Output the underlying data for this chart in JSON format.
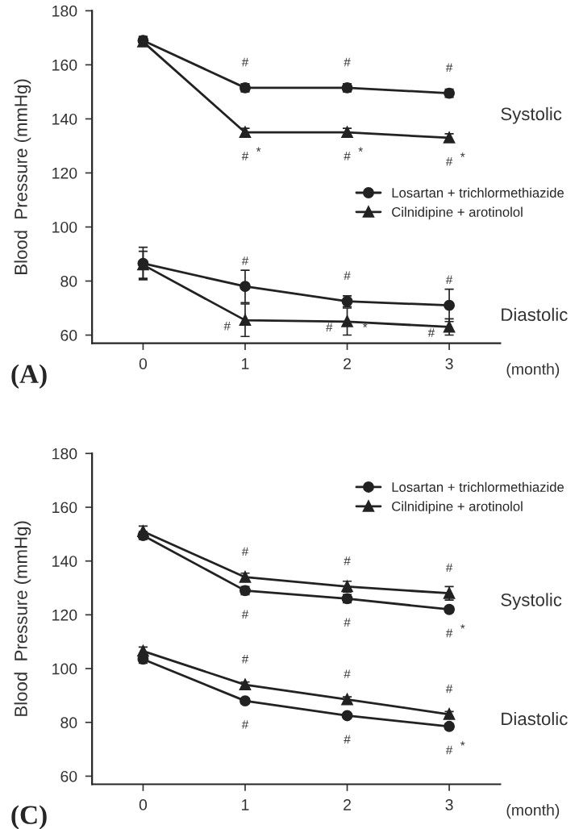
{
  "chart_data": [
    {
      "type": "line",
      "ylabel": "Blood  Pressure (mmHg)",
      "xlabel": "(month)",
      "x": [
        0,
        1,
        2,
        3
      ],
      "xlim": [
        -0.5,
        3.5
      ],
      "ylim": [
        57,
        180
      ],
      "xticks": [
        0,
        1,
        2,
        3
      ],
      "yticks": [
        60,
        80,
        100,
        120,
        140,
        160,
        180
      ],
      "legend": "right",
      "grid": false,
      "series": [
        {
          "name": "Losartan + trichlormethiazide",
          "color": "#222222",
          "marker": "circle",
          "values": [
            169,
            151.5,
            151.5,
            149.5
          ],
          "errors": [
            1.5,
            1.5,
            1.5,
            1.5
          ]
        },
        {
          "name": "Cilnidipine + arotinolol",
          "color": "#222222",
          "marker": "triangle",
          "values": [
            168.5,
            135,
            135,
            133
          ],
          "errors": [
            1.5,
            1.5,
            1.5,
            1.5
          ]
        },
        {
          "color": "#222222",
          "marker": "circle",
          "values": [
            86.5,
            78,
            72.5,
            71
          ],
          "errors": [
            6,
            6,
            2,
            6
          ]
        },
        {
          "color": "#222222",
          "marker": "triangle",
          "values": [
            86,
            65.5,
            65,
            63
          ],
          "errors": [
            5,
            6,
            5,
            3
          ]
        }
      ],
      "annotations": [
        "(A)",
        "Systolic",
        "Diastolic",
        {
          "text": "#",
          "x": 1,
          "y": 151.5
        },
        {
          "text": "#",
          "x": 2,
          "y": 151.5
        },
        {
          "text": "#",
          "x": 3,
          "y": 149.5
        },
        {
          "text": "#",
          "x": 1,
          "y": 135
        },
        {
          "text": "#",
          "x": 2,
          "y": 135
        },
        {
          "text": "#",
          "x": 3,
          "y": 133
        },
        {
          "text": "*",
          "x": 1,
          "y": 135
        },
        {
          "text": "*",
          "x": 2,
          "y": 135
        },
        {
          "text": "*",
          "x": 3,
          "y": 133
        },
        {
          "text": "#",
          "x": 1,
          "y": 78
        },
        {
          "text": "#",
          "x": 2,
          "y": 72.5
        },
        {
          "text": "#",
          "x": 3,
          "y": 71
        },
        {
          "text": "#",
          "x": 1,
          "y": 65.5
        },
        {
          "text": "#",
          "x": 2,
          "y": 65
        },
        {
          "text": "#",
          "x": 3,
          "y": 63
        },
        {
          "text": "*",
          "x": 2,
          "y": 65
        }
      ]
    },
    {
      "type": "line",
      "ylabel": "Blood  Pressure (mmHg)",
      "xlabel": "(month)",
      "x": [
        0,
        1,
        2,
        3
      ],
      "xlim": [
        -0.5,
        3.5
      ],
      "ylim": [
        57,
        180
      ],
      "xticks": [
        0,
        1,
        2,
        3
      ],
      "yticks": [
        60,
        80,
        100,
        120,
        140,
        160,
        180
      ],
      "legend": "top right",
      "grid": false,
      "series": [
        {
          "name": "Losartan + trichlormethiazide",
          "color": "#222222",
          "marker": "circle",
          "values": [
            149.5,
            129,
            126,
            122
          ],
          "errors": [
            1.5,
            1.5,
            1.5,
            1
          ]
        },
        {
          "name": "Cilnidipine + arotinolol",
          "color": "#222222",
          "marker": "triangle",
          "values": [
            151,
            134,
            130.5,
            128
          ],
          "errors": [
            2,
            1.5,
            2,
            2.5
          ]
        },
        {
          "color": "#222222",
          "marker": "circle",
          "values": [
            103.5,
            88,
            82.5,
            78.5
          ],
          "errors": [
            1.5,
            1,
            1,
            1
          ]
        },
        {
          "color": "#222222",
          "marker": "triangle",
          "values": [
            106.5,
            94,
            88.5,
            83
          ],
          "errors": [
            1.5,
            1,
            1,
            1
          ]
        }
      ],
      "annotations": [
        "(C)",
        "Systolic",
        "Diastolic",
        {
          "text": "#",
          "x": 1,
          "y": 134
        },
        {
          "text": "#",
          "x": 2,
          "y": 130.5
        },
        {
          "text": "#",
          "x": 3,
          "y": 128
        },
        {
          "text": "#",
          "x": 1,
          "y": 129
        },
        {
          "text": "#",
          "x": 2,
          "y": 126
        },
        {
          "text": "#",
          "x": 3,
          "y": 122
        },
        {
          "text": "*",
          "x": 3,
          "y": 122
        },
        {
          "text": "#",
          "x": 1,
          "y": 94
        },
        {
          "text": "#",
          "x": 2,
          "y": 88.5
        },
        {
          "text": "#",
          "x": 3,
          "y": 83
        },
        {
          "text": "#",
          "x": 1,
          "y": 88
        },
        {
          "text": "#",
          "x": 2,
          "y": 82.5
        },
        {
          "text": "#",
          "x": 3,
          "y": 78.5
        },
        {
          "text": "*",
          "x": 3,
          "y": 78.5
        }
      ]
    }
  ]
}
